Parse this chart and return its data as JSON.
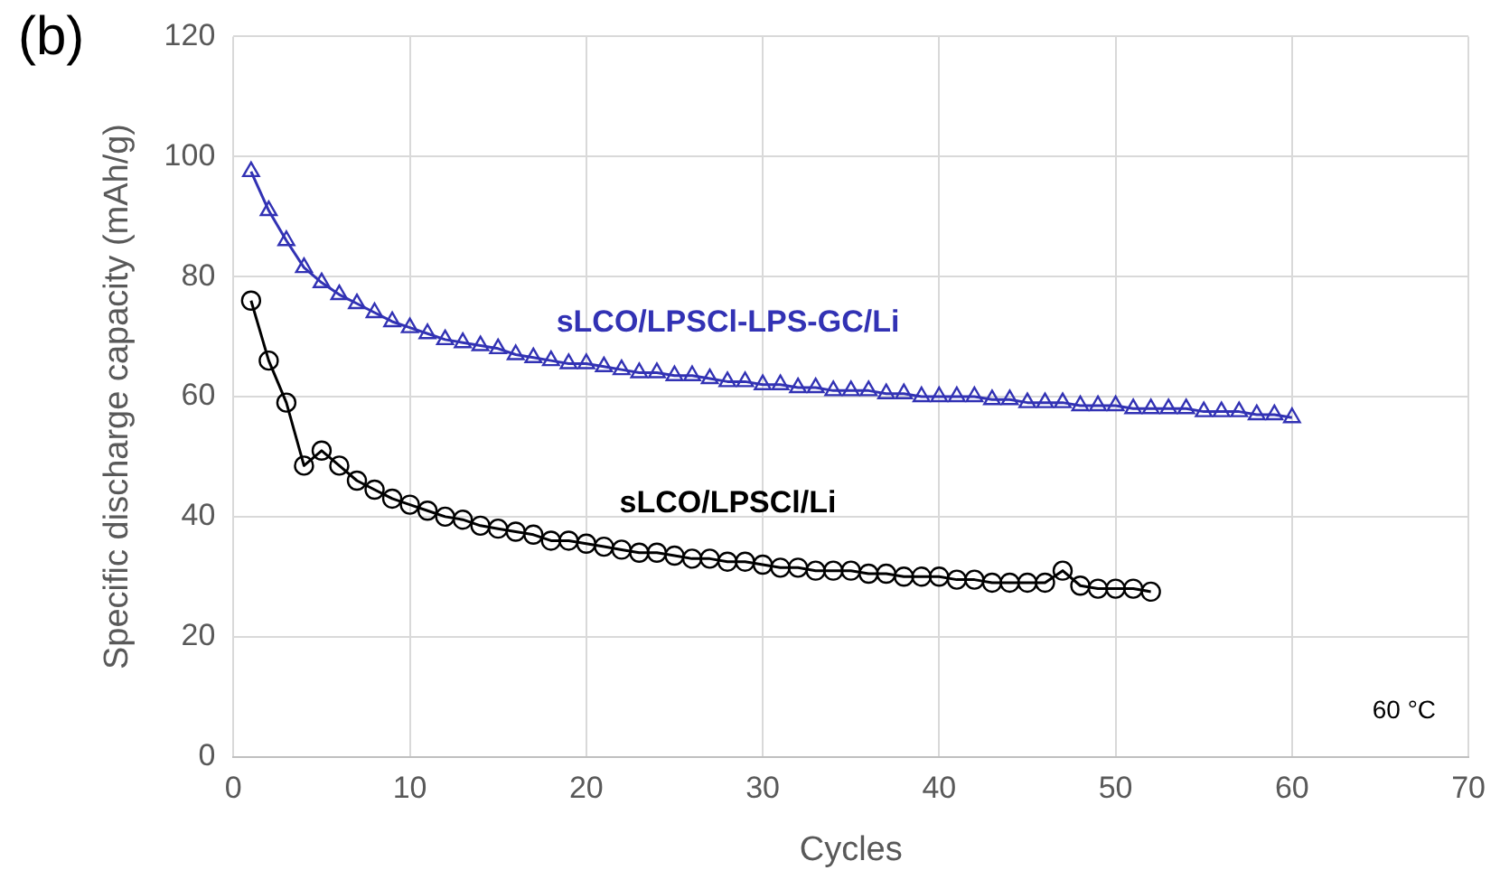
{
  "chart_data": {
    "type": "line",
    "xlabel": "Cycles",
    "ylabel": "Specific discharge capacity (mAh/g)",
    "xlim": [
      0,
      70
    ],
    "xticks": [
      0,
      10,
      20,
      30,
      40,
      50,
      60,
      70
    ],
    "ylim": [
      0,
      120
    ],
    "yticks": [
      0,
      20,
      40,
      60,
      80,
      100,
      120
    ],
    "grid": true,
    "legend": false,
    "annotations": [
      "(b)",
      "60 °C"
    ],
    "series": [
      {
        "name": "sLCO/LPSCl-LPS-GC/Li",
        "color": "#3232b4",
        "marker": "triangle",
        "x": [
          1,
          2,
          3,
          4,
          5,
          6,
          7,
          8,
          9,
          10,
          11,
          12,
          13,
          14,
          15,
          16,
          17,
          18,
          19,
          20,
          21,
          22,
          23,
          24,
          25,
          26,
          27,
          28,
          29,
          30,
          31,
          32,
          33,
          34,
          35,
          36,
          37,
          38,
          39,
          40,
          41,
          42,
          43,
          44,
          45,
          46,
          47,
          48,
          49,
          50,
          51,
          52,
          53,
          54,
          55,
          56,
          57,
          58,
          59,
          60
        ],
        "values": [
          97.5,
          91,
          86,
          81.5,
          79,
          77,
          75.5,
          74,
          72.5,
          71.5,
          70.5,
          69.5,
          69,
          68.5,
          68,
          67,
          66.5,
          66,
          65.5,
          65.5,
          65,
          64.5,
          64,
          64,
          63.5,
          63.5,
          63,
          62.5,
          62.5,
          62,
          62,
          61.5,
          61.5,
          61,
          61,
          61,
          60.5,
          60.5,
          60,
          60,
          60,
          60,
          59.5,
          59.5,
          59,
          59,
          59,
          58.5,
          58.5,
          58.5,
          58,
          58,
          58,
          58,
          57.5,
          57.5,
          57.5,
          57,
          57,
          56.5
        ]
      },
      {
        "name": "sLCO/LPSCl/Li",
        "color": "#000000",
        "marker": "circle",
        "x": [
          1,
          2,
          3,
          4,
          5,
          6,
          7,
          8,
          9,
          10,
          11,
          12,
          13,
          14,
          15,
          16,
          17,
          18,
          19,
          20,
          21,
          22,
          23,
          24,
          25,
          26,
          27,
          28,
          29,
          30,
          31,
          32,
          33,
          34,
          35,
          36,
          37,
          38,
          39,
          40,
          41,
          42,
          43,
          44,
          45,
          46,
          47,
          48,
          49,
          50,
          51,
          52
        ],
        "values": [
          76,
          66,
          59,
          48.5,
          51,
          48.5,
          46,
          44.5,
          43,
          42,
          41,
          40,
          39.5,
          38.5,
          38,
          37.5,
          37,
          36,
          36,
          35.5,
          35,
          34.5,
          34,
          34,
          33.5,
          33,
          33,
          32.5,
          32.5,
          32,
          31.5,
          31.5,
          31,
          31,
          31,
          30.5,
          30.5,
          30,
          30,
          30,
          29.5,
          29.5,
          29,
          29,
          29,
          29,
          31,
          28.5,
          28,
          28,
          28,
          27.5
        ]
      }
    ]
  }
}
